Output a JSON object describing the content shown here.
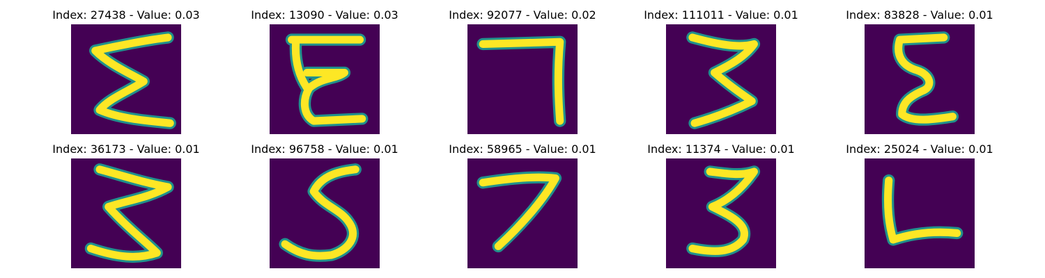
{
  "colors": {
    "background": "#440154",
    "stroke_mid": "#21918c",
    "stroke_core": "#fde725"
  },
  "panels": [
    {
      "title": "Index: 27438 - Value: 0.03",
      "glyph": "epsilon-3-reversed-sketch"
    },
    {
      "title": "Index: 13090 - Value: 0.03",
      "glyph": "capital-E-sketch"
    },
    {
      "title": "Index: 92077 - Value: 0.02",
      "glyph": "digit-7-sketch"
    },
    {
      "title": "Index: 111011 - Value: 0.01",
      "glyph": "digit-3-sketch"
    },
    {
      "title": "Index: 83828 - Value: 0.01",
      "glyph": "epsilon-sketch"
    },
    {
      "title": "Index: 36173 - Value: 0.01",
      "glyph": "digit-3-sketch"
    },
    {
      "title": "Index: 96758 - Value: 0.01",
      "glyph": "digit-5-sketch"
    },
    {
      "title": "Index: 58965 - Value: 0.01",
      "glyph": "digit-7-sketch"
    },
    {
      "title": "Index: 11374 - Value: 0.01",
      "glyph": "digit-3-sketch"
    },
    {
      "title": "Index: 25024 - Value: 0.01",
      "glyph": "letter-L-sketch"
    }
  ]
}
